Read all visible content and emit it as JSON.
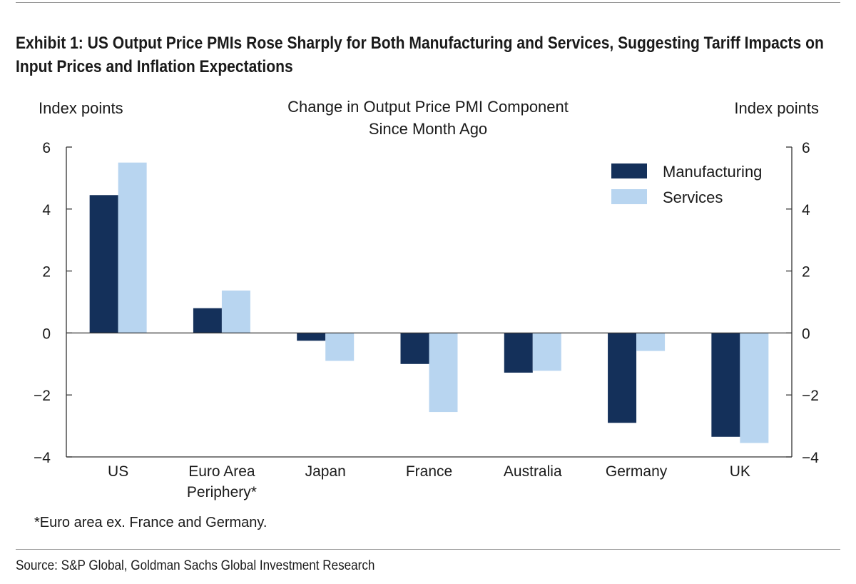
{
  "exhibit": {
    "title": "Exhibit 1: US Output Price PMIs Rose Sharply for Both Manufacturing and Services, Suggesting Tariff Impacts on Input Prices and Inflation Expectations"
  },
  "chart_data": {
    "type": "bar",
    "title_lines": [
      "Change in Output Price PMI Component",
      "Since Month Ago"
    ],
    "ylabel_left": "Index points",
    "ylabel_right": "Index points",
    "ylim": [
      -4,
      6
    ],
    "yticks": [
      6,
      4,
      2,
      0,
      -2,
      -4
    ],
    "categories": [
      [
        "US"
      ],
      [
        "Euro Area",
        "Periphery*"
      ],
      [
        "Japan"
      ],
      [
        "France"
      ],
      [
        "Australia"
      ],
      [
        "Germany"
      ],
      [
        "UK"
      ]
    ],
    "series": [
      {
        "name": "Manufacturing",
        "color": "#14305a",
        "values": [
          4.45,
          0.8,
          -0.25,
          -1.0,
          -1.28,
          -2.9,
          -3.35
        ]
      },
      {
        "name": "Services",
        "color": "#b8d5f0",
        "values": [
          5.5,
          1.37,
          -0.9,
          -2.55,
          -1.22,
          -0.58,
          -3.55
        ]
      }
    ],
    "legend_position": "top-right",
    "footnote": "*Euro area ex. France and Germany."
  },
  "source": "Source: S&P Global, Goldman Sachs Global Investment Research"
}
